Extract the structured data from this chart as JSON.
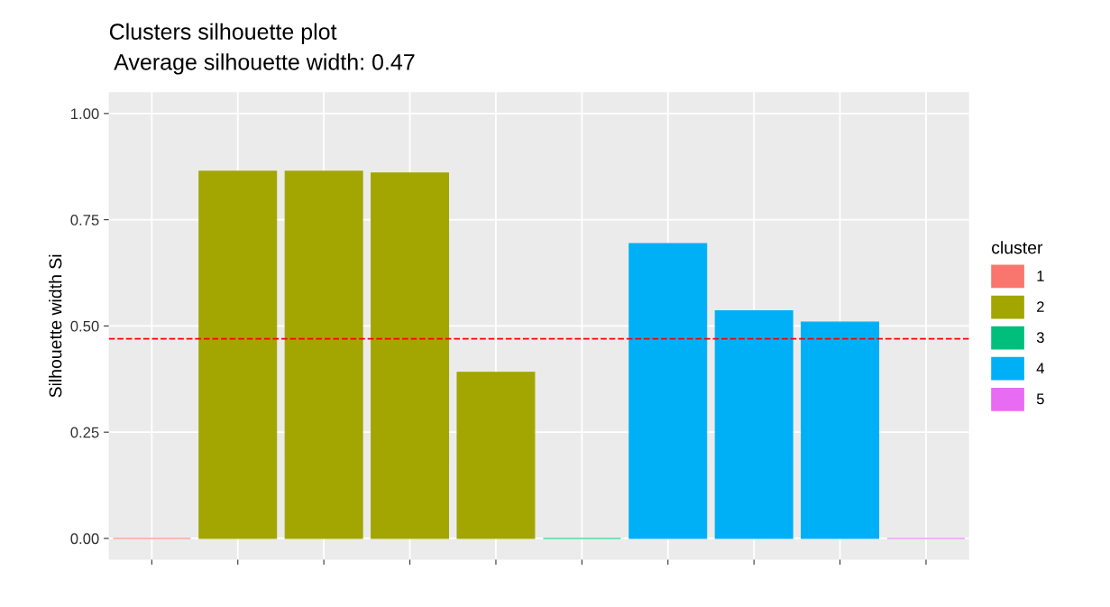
{
  "chart_data": {
    "type": "bar",
    "title": "Clusters silhouette plot",
    "subtitle": " Average silhouette width: 0.47",
    "ylabel": "Silhouette width Si",
    "legend_title": "cluster",
    "categories": [
      null,
      null,
      null,
      null,
      null,
      null,
      null,
      null,
      null,
      null
    ],
    "series": [
      {
        "name": "1",
        "color": "#f8766d",
        "values": [
          0,
          null,
          null,
          null,
          null,
          null,
          null,
          null,
          null,
          null
        ]
      },
      {
        "name": "2",
        "color": "#a3a500",
        "values": [
          null,
          0.864,
          0.864,
          0.86,
          0.391,
          null,
          null,
          null,
          null,
          null
        ]
      },
      {
        "name": "3",
        "color": "#00bf7d",
        "values": [
          null,
          null,
          null,
          null,
          null,
          0,
          null,
          null,
          null,
          null
        ]
      },
      {
        "name": "4",
        "color": "#00b0f6",
        "values": [
          null,
          null,
          null,
          null,
          null,
          null,
          0.694,
          0.536,
          0.509,
          null
        ]
      },
      {
        "name": "5",
        "color": "#e76bf3",
        "values": [
          null,
          null,
          null,
          null,
          null,
          null,
          null,
          null,
          null,
          0
        ]
      }
    ],
    "ylim": [
      -0.05,
      1.05
    ],
    "yticks": [
      {
        "value": 0,
        "label": "0.00"
      },
      {
        "value": 0.25,
        "label": "0.25"
      },
      {
        "value": 0.5,
        "label": "0.50"
      },
      {
        "value": 0.75,
        "label": "0.75"
      },
      {
        "value": 1,
        "label": "1.00"
      }
    ],
    "ref_lines": [
      {
        "axis": "y",
        "value": 0.47,
        "color": "#ff0000",
        "line_style": "dashed"
      }
    ],
    "grid": true,
    "legend": "right"
  }
}
